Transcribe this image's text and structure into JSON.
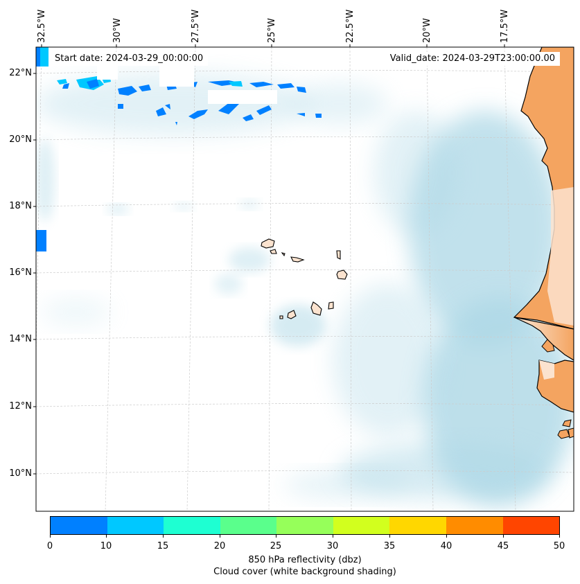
{
  "map": {
    "start_date_label": "Start date: 2024-03-29_00:00:00",
    "valid_date_label": "Valid_date: 2024-03-29T23:00:00.00",
    "longitude_labels": [
      "32.5°W",
      "30°W",
      "27.5°W",
      "25°W",
      "22.5°W",
      "20°W",
      "17.5°W"
    ],
    "latitude_labels": [
      "22°N",
      "20°N",
      "18°N",
      "16°N",
      "14°N",
      "12°N",
      "10°N"
    ],
    "colors": {
      "cloud": "#add8e6",
      "land": "#f4a460",
      "land_light": "#fbe3cf",
      "coast": "#000000",
      "gridline": "#cccccc"
    }
  },
  "colorbar": {
    "tick_labels": [
      "0",
      "10",
      "15",
      "20",
      "25",
      "30",
      "35",
      "40",
      "45",
      "50"
    ],
    "colors": [
      "#0080ff",
      "#00c8ff",
      "#1effd2",
      "#5aff8c",
      "#96ff5a",
      "#d2ff1e",
      "#ffd700",
      "#ff8c00",
      "#ff4500"
    ],
    "title_line1": "850 hPa reflectivity (dbz)",
    "title_line2": "Cloud cover (white background shading)"
  }
}
